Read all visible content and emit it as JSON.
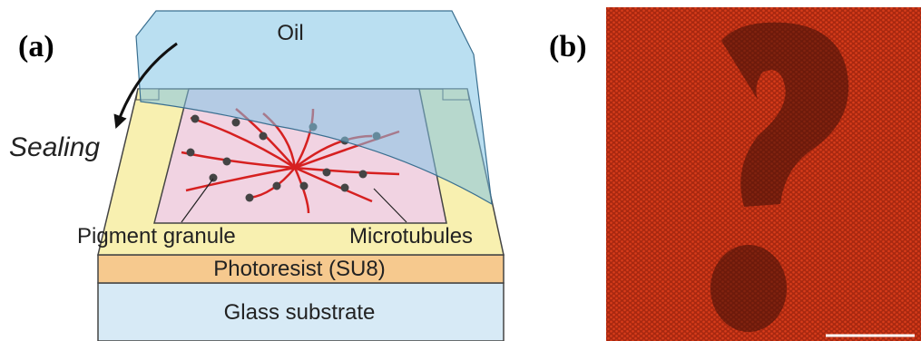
{
  "panel_a": {
    "label": "(a)",
    "oil": "Oil",
    "sealing": "Sealing",
    "pigment": "Pigment granule",
    "microtubules": "Microtubules",
    "photoresist": "Photoresist (SU8)",
    "glass": "Glass substrate"
  },
  "panel_b": {
    "label": "(b)"
  }
}
